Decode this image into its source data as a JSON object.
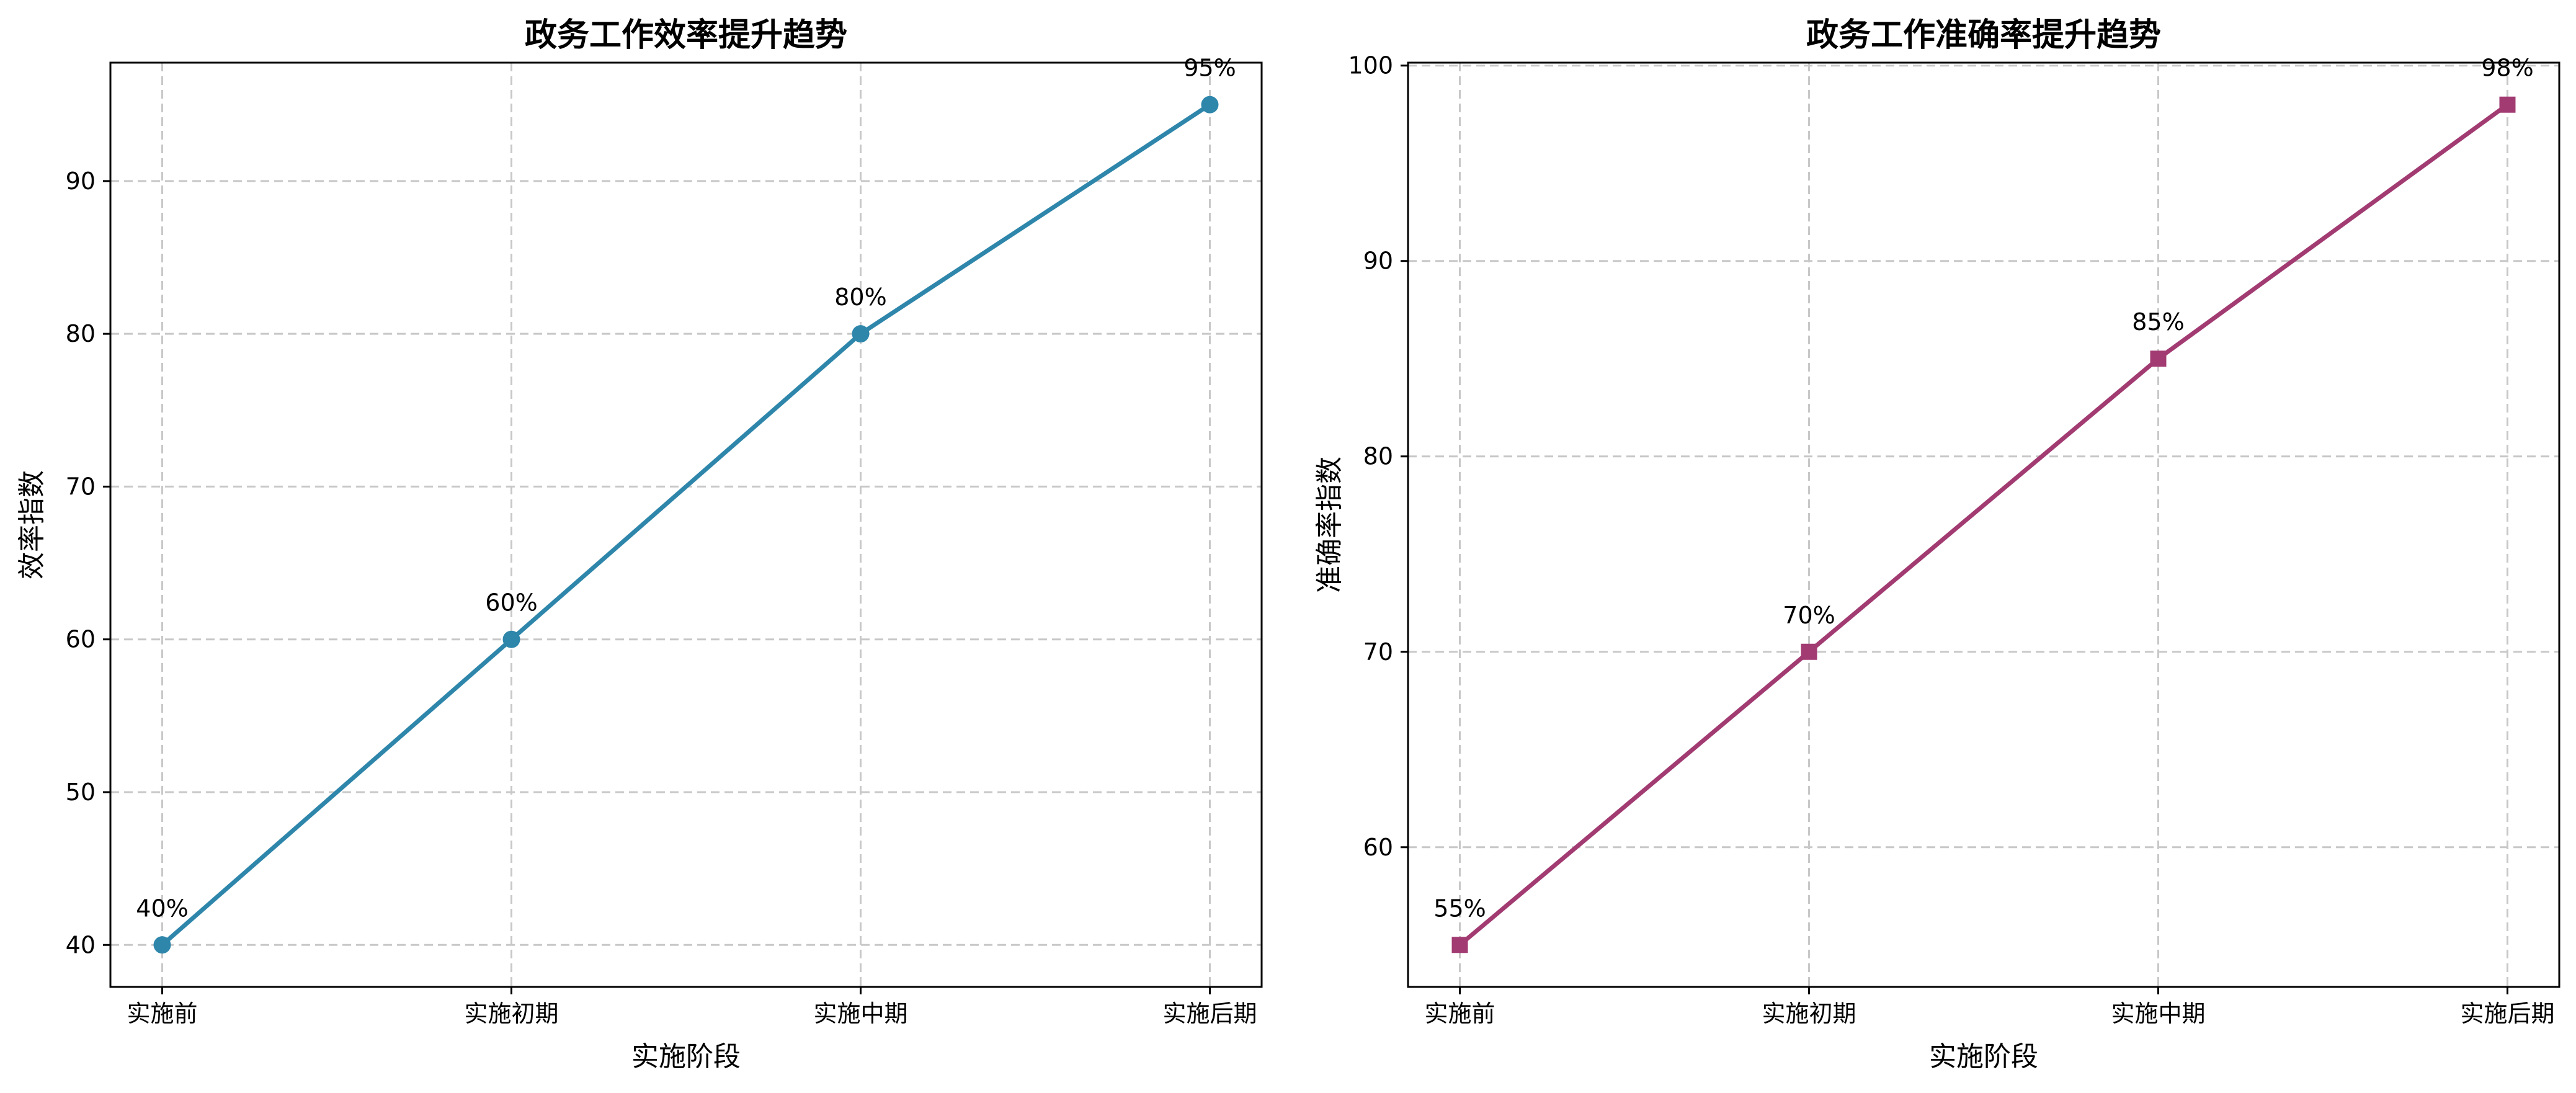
{
  "chart_data": [
    {
      "type": "line",
      "title": "政务工作效率提升趋势",
      "xlabel": "实施阶段",
      "ylabel": "效率指数",
      "categories": [
        "实施前",
        "实施初期",
        "实施中期",
        "实施后期"
      ],
      "series": [
        {
          "values": [
            40,
            60,
            80,
            95
          ],
          "color": "#2E86AB",
          "marker": "circle"
        }
      ],
      "data_labels": [
        "40%",
        "60%",
        "80%",
        "95%"
      ],
      "ylim": [
        37.25,
        97.75
      ],
      "yticks": [
        40,
        50,
        60,
        70,
        80,
        90
      ],
      "grid": true
    },
    {
      "type": "line",
      "title": "政务工作准确率提升趋势",
      "xlabel": "实施阶段",
      "ylabel": "准确率指数",
      "categories": [
        "实施前",
        "实施初期",
        "实施中期",
        "实施后期"
      ],
      "series": [
        {
          "values": [
            55,
            70,
            85,
            98
          ],
          "color": "#A23B72",
          "marker": "square"
        }
      ],
      "data_labels": [
        "55%",
        "70%",
        "85%",
        "98%"
      ],
      "ylim": [
        52.85,
        100.15
      ],
      "yticks": [
        60,
        70,
        80,
        90,
        100
      ],
      "grid": true
    }
  ]
}
